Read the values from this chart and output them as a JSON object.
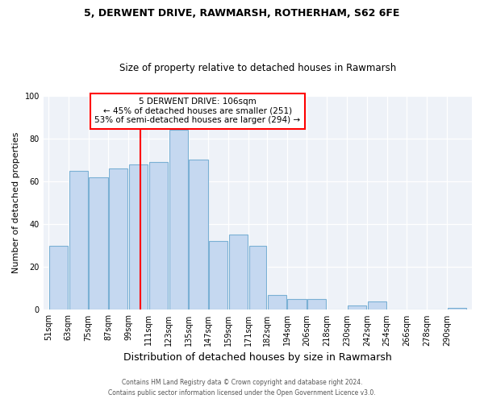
{
  "title1": "5, DERWENT DRIVE, RAWMARSH, ROTHERHAM, S62 6FE",
  "title2": "Size of property relative to detached houses in Rawmarsh",
  "xlabel": "Distribution of detached houses by size in Rawmarsh",
  "ylabel": "Number of detached properties",
  "bar_color": "#c5d8f0",
  "bar_edge_color": "#7ab0d4",
  "categories": [
    "51sqm",
    "63sqm",
    "75sqm",
    "87sqm",
    "99sqm",
    "111sqm",
    "123sqm",
    "135sqm",
    "147sqm",
    "159sqm",
    "171sqm",
    "182sqm",
    "194sqm",
    "206sqm",
    "218sqm",
    "230sqm",
    "242sqm",
    "254sqm",
    "266sqm",
    "278sqm",
    "290sqm"
  ],
  "values": [
    30,
    65,
    62,
    66,
    68,
    69,
    84,
    70,
    32,
    35,
    30,
    7,
    5,
    5,
    0,
    2,
    4,
    0,
    0,
    0,
    1
  ],
  "bin_edges": [
    51,
    63,
    75,
    87,
    99,
    111,
    123,
    135,
    147,
    159,
    171,
    182,
    194,
    206,
    218,
    230,
    242,
    254,
    266,
    278,
    290,
    302
  ],
  "ylim": [
    0,
    100
  ],
  "red_line_x": 106,
  "annotation_title": "5 DERWENT DRIVE: 106sqm",
  "annotation_line1": "← 45% of detached houses are smaller (251)",
  "annotation_line2": "53% of semi-detached houses are larger (294) →",
  "bg_color": "#eef2f8",
  "footnote1": "Contains HM Land Registry data © Crown copyright and database right 2024.",
  "footnote2": "Contains public sector information licensed under the Open Government Licence v3.0."
}
